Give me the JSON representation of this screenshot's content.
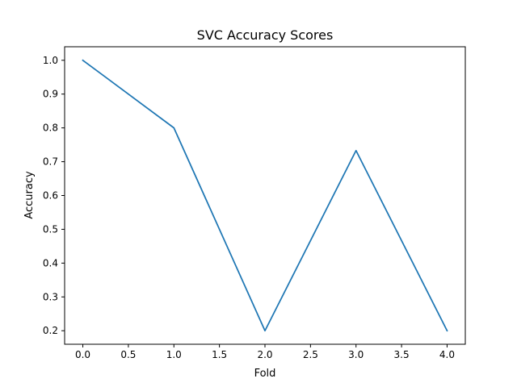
{
  "chart_data": {
    "type": "line",
    "title": "SVC Accuracy Scores",
    "xlabel": "Fold",
    "ylabel": "Accuracy",
    "x": [
      0,
      1,
      2,
      3,
      4
    ],
    "series": [
      {
        "values": [
          1.0,
          0.8,
          0.2,
          0.733,
          0.2
        ],
        "color": "#1f77b4"
      }
    ],
    "xlim": [
      -0.2,
      4.2
    ],
    "ylim": [
      0.16,
      1.04
    ],
    "xticks": [
      0.0,
      0.5,
      1.0,
      1.5,
      2.0,
      2.5,
      3.0,
      3.5,
      4.0
    ],
    "xtick_labels": [
      "0.0",
      "0.5",
      "1.0",
      "1.5",
      "2.0",
      "2.5",
      "3.0",
      "3.5",
      "4.0"
    ],
    "yticks": [
      0.2,
      0.3,
      0.4,
      0.5,
      0.6,
      0.7,
      0.8,
      0.9,
      1.0
    ],
    "ytick_labels": [
      "0.2",
      "0.3",
      "0.4",
      "0.5",
      "0.6",
      "0.7",
      "0.8",
      "0.9",
      "1.0"
    ],
    "grid": false,
    "legend": false
  }
}
